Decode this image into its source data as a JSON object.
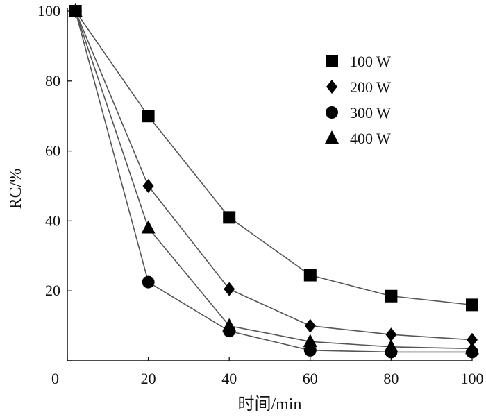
{
  "chart_data": {
    "type": "line",
    "title": "",
    "xlabel": "时间/min",
    "ylabel": "RC/%",
    "x": [
      2,
      20,
      40,
      60,
      80,
      100
    ],
    "xticks": [
      0,
      20,
      40,
      60,
      80,
      100
    ],
    "yticks": [
      0,
      20,
      40,
      60,
      80,
      100
    ],
    "xlim": [
      0,
      100
    ],
    "ylim": [
      0,
      100
    ],
    "grid": false,
    "legend_position": "top-right",
    "series": [
      {
        "name": "100 W",
        "marker": "square",
        "values": [
          100,
          70,
          41,
          24.5,
          18.5,
          16
        ]
      },
      {
        "name": "200 W",
        "marker": "diamond",
        "values": [
          100,
          50,
          20.5,
          10,
          7.5,
          6
        ]
      },
      {
        "name": "300 W",
        "marker": "circle",
        "values": [
          100,
          22.5,
          8.5,
          3,
          2.5,
          2.5
        ]
      },
      {
        "name": "400 W",
        "marker": "triangle",
        "values": [
          100,
          38,
          10,
          5.5,
          4,
          3.5
        ]
      }
    ],
    "colors": {
      "line": "#555555",
      "marker": "#000000"
    }
  }
}
